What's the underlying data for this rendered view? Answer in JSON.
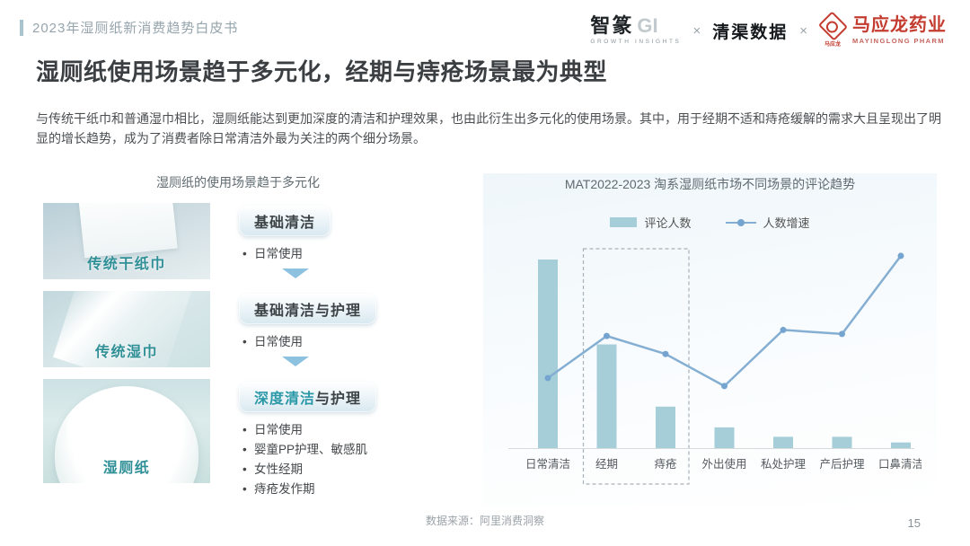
{
  "header": {
    "doc_title": "2023年湿厕纸新消费趋势白皮书",
    "logos": {
      "zhizhuan": {
        "cn": "智篆",
        "gi": "GI",
        "sub": "GROWTH INSIGHTS"
      },
      "separator": "×",
      "qingqu": "清渠数据",
      "mayinglong": {
        "cn": "马应龙药业",
        "sub": "MAYINGLONG PHARM",
        "seal_text": "马应龙"
      }
    }
  },
  "title": "湿厕纸使用场景趋于多元化，经期与痔疮场景最为典型",
  "intro": "与传统干纸巾和普通湿巾相比，湿厕纸能达到更加深度的清洁和护理效果，也由此衍生出多元化的使用场景。其中，用于经期不适和痔疮缓解的需求大且呈现出了明显的增长趋势，成为了消费者除日常清洁外最为关注的两个细分场景。",
  "diagram": {
    "title": "湿厕纸的使用场景趋于多元化",
    "rows": [
      {
        "image_label": "传统干纸巾",
        "badge_accent": "",
        "badge_text": "基础清洁",
        "bullets": [
          "日常使用"
        ],
        "arrow": true
      },
      {
        "image_label": "传统湿巾",
        "badge_accent": "",
        "badge_text": "基础清洁与护理",
        "bullets": [
          "日常使用"
        ],
        "arrow": true
      },
      {
        "image_label": "湿厕纸",
        "badge_accent": "深度清洁",
        "badge_text": "与护理",
        "bullets": [
          "日常使用",
          "婴童PP护理、敏感肌",
          "女性经期",
          "痔疮发作期"
        ],
        "arrow": false
      }
    ]
  },
  "chart_data": {
    "type": "bar",
    "title": "MAT2022-2023 淘系湿厕纸市场不同场景的评论趋势",
    "categories": [
      "日常清洁",
      "经期",
      "痔疮",
      "外出使用",
      "私处护理",
      "产后护理",
      "口鼻清洁"
    ],
    "series": [
      {
        "name": "评论人数",
        "type": "bar",
        "values": [
          100,
          55,
          22,
          11,
          6,
          6,
          3
        ],
        "color": "#a6ced9"
      },
      {
        "name": "人数增速",
        "type": "line",
        "values": [
          35,
          56,
          47,
          31,
          59,
          57,
          96
        ],
        "color": "#85afd2"
      }
    ],
    "highlight_indices": [
      1,
      2
    ],
    "highlight_categories": [
      "经期",
      "痔疮"
    ],
    "ylim": [
      0,
      100
    ],
    "axes_unlabeled": true,
    "grid": false,
    "legend_position": "top",
    "note": "values are relative indices estimated from bar/line heights; no numeric axis shown"
  },
  "footer": {
    "source": "数据来源：阿里消费洞察",
    "page": "15"
  },
  "colors": {
    "bar": "#a6ced9",
    "line": "#85afd2",
    "marker": "#74a4cf",
    "teal_label": "#2f8f96",
    "badge_accent": "#2b98a8",
    "brand_red": "#c43b2f",
    "header_gray": "#96a5ad",
    "dashed_box": "#a7b1b8"
  }
}
